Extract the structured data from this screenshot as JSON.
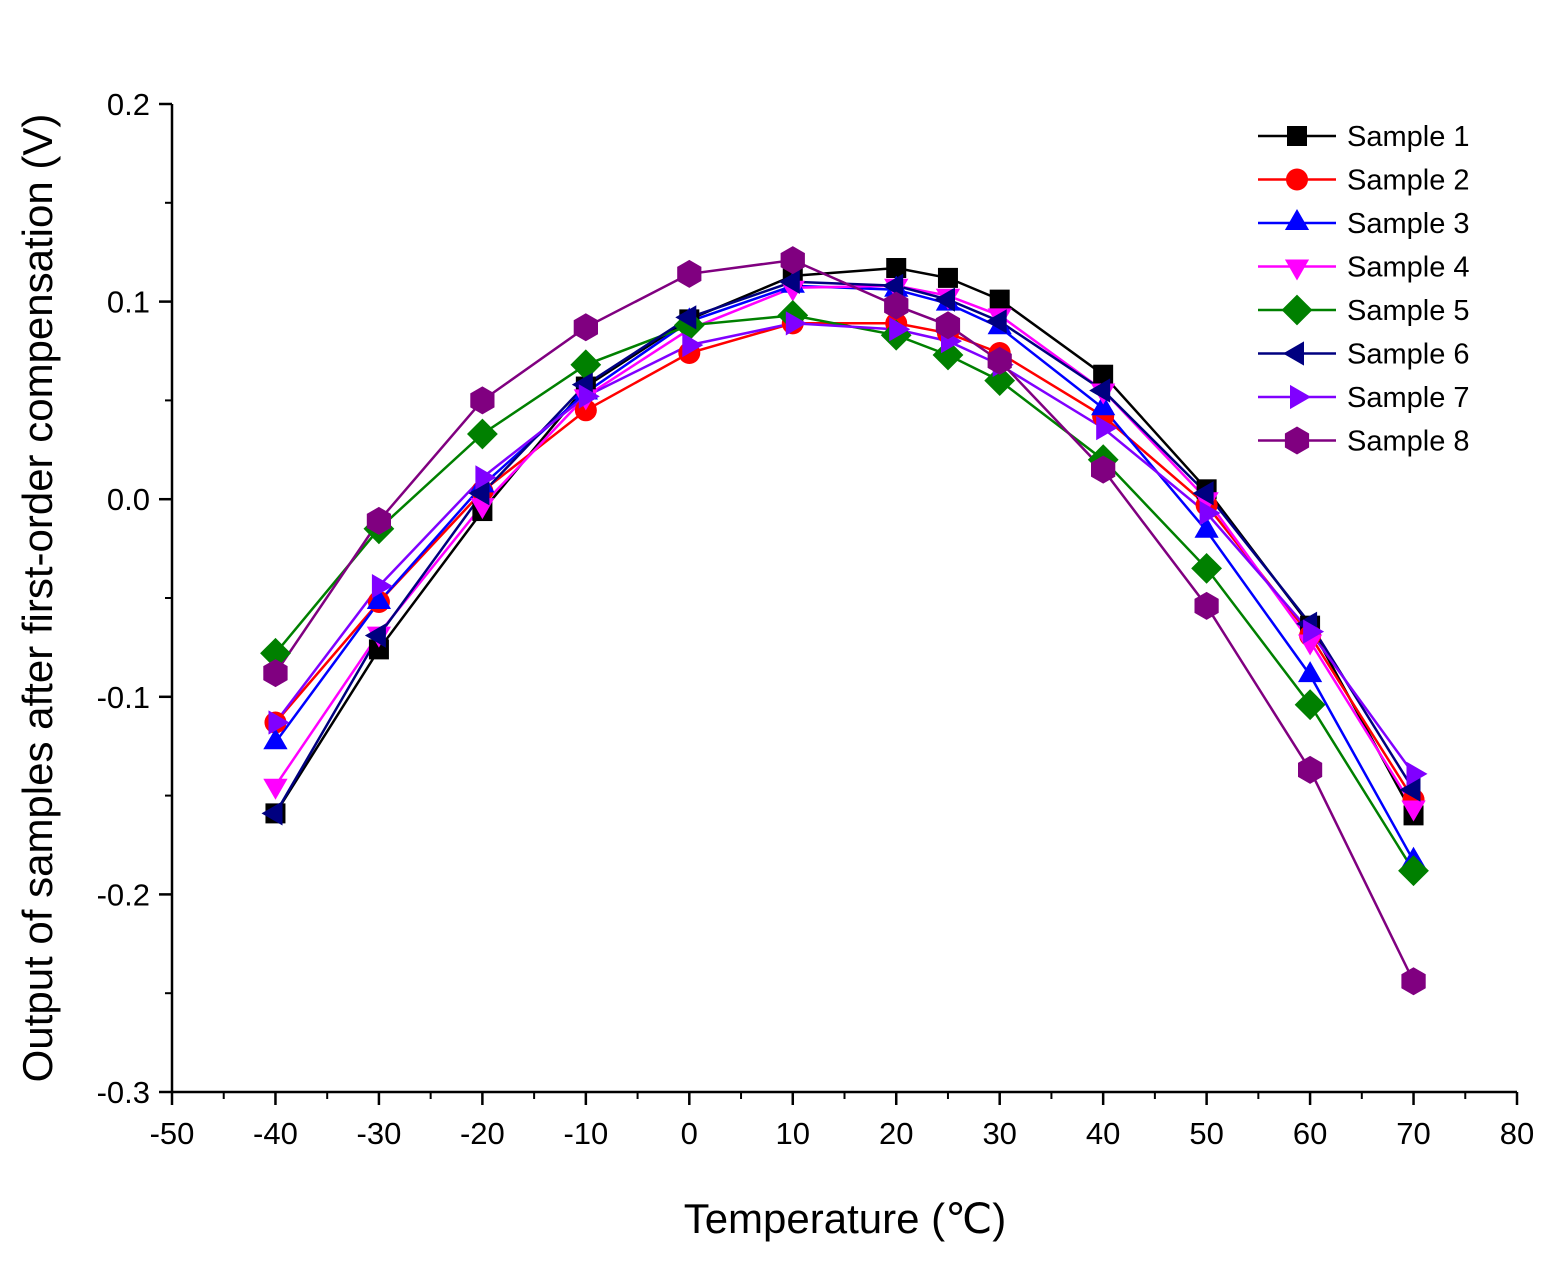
{
  "chart_data": {
    "type": "line",
    "xlabel": "Temperature (℃)",
    "ylabel": "Output of samples after first-order compensation (V)",
    "xlim": [
      -50,
      80
    ],
    "ylim": [
      -0.3,
      0.2
    ],
    "xticks": [
      -50,
      -40,
      -30,
      -20,
      -10,
      0,
      10,
      20,
      30,
      40,
      50,
      60,
      70,
      80
    ],
    "yticks": [
      -0.3,
      -0.2,
      -0.1,
      0.0,
      0.1,
      0.2
    ],
    "xtick_labels": [
      "-50",
      "-40",
      "-30",
      "-20",
      "-10",
      "0",
      "10",
      "20",
      "30",
      "40",
      "50",
      "60",
      "70",
      "80"
    ],
    "ytick_labels": [
      "-0.3",
      "-0.2",
      "-0.1",
      "0.0",
      "0.1",
      "0.2"
    ],
    "grid": false,
    "legend_position": "top-right",
    "x": [
      -40,
      -30,
      -20,
      -10,
      0,
      10,
      20,
      25,
      30,
      40,
      50,
      60,
      70
    ],
    "series": [
      {
        "name": "Sample 1",
        "color": "#000000",
        "marker": "square",
        "values": [
          -0.159,
          -0.076,
          -0.006,
          0.057,
          0.091,
          0.113,
          0.117,
          0.112,
          0.101,
          0.063,
          0.005,
          -0.064,
          -0.16
        ]
      },
      {
        "name": "Sample 2",
        "color": "#ff0000",
        "marker": "circle",
        "values": [
          -0.113,
          -0.052,
          0.004,
          0.045,
          0.074,
          0.089,
          0.089,
          0.084,
          0.074,
          0.042,
          -0.003,
          -0.069,
          -0.152
        ]
      },
      {
        "name": "Sample 3",
        "color": "#0000ff",
        "marker": "triangle-up",
        "values": [
          -0.123,
          -0.052,
          0.007,
          0.054,
          0.09,
          0.108,
          0.106,
          0.099,
          0.087,
          0.046,
          -0.016,
          -0.089,
          -0.183
        ]
      },
      {
        "name": "Sample 4",
        "color": "#ff00ff",
        "marker": "triangle-down",
        "values": [
          -0.145,
          -0.068,
          -0.003,
          0.052,
          0.086,
          0.107,
          0.108,
          0.103,
          0.093,
          0.055,
          0.0,
          -0.072,
          -0.156
        ]
      },
      {
        "name": "Sample 5",
        "color": "#008000",
        "marker": "diamond",
        "values": [
          -0.078,
          -0.015,
          0.033,
          0.068,
          0.088,
          0.093,
          0.083,
          0.073,
          0.06,
          0.02,
          -0.035,
          -0.104,
          -0.188
        ]
      },
      {
        "name": "Sample 6",
        "color": "#000080",
        "marker": "triangle-left",
        "values": [
          -0.159,
          -0.069,
          0.003,
          0.058,
          0.092,
          0.11,
          0.108,
          0.101,
          0.09,
          0.055,
          0.003,
          -0.063,
          -0.147
        ]
      },
      {
        "name": "Sample 7",
        "color": "#8000ff",
        "marker": "triangle-right",
        "values": [
          -0.113,
          -0.044,
          0.011,
          0.052,
          0.078,
          0.089,
          0.086,
          0.08,
          0.068,
          0.036,
          -0.007,
          -0.067,
          -0.139
        ]
      },
      {
        "name": "Sample 8",
        "color": "#800080",
        "marker": "hexagon",
        "values": [
          -0.088,
          -0.011,
          0.05,
          0.087,
          0.114,
          0.121,
          0.098,
          0.088,
          0.07,
          0.015,
          -0.054,
          -0.137,
          -0.244
        ]
      }
    ]
  }
}
